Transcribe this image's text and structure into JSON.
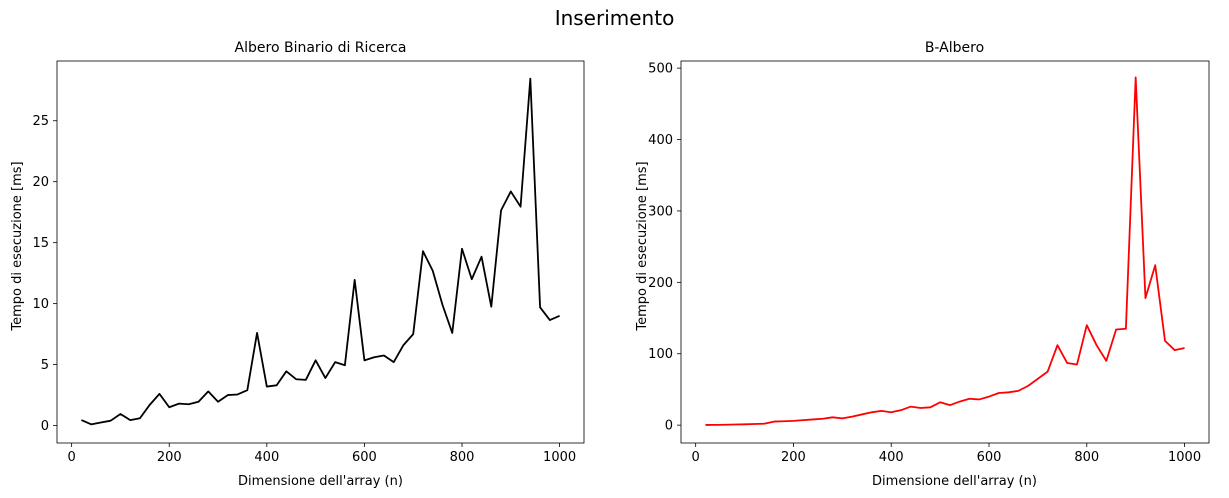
{
  "figure": {
    "suptitle": "Inserimento"
  },
  "chart_data": [
    {
      "type": "line",
      "title": "Albero Binario di Ricerca",
      "xlabel": "Dimensione dell'array (n)",
      "ylabel": "Tempo di esecuzione [ms]",
      "xlim": [
        -30,
        1050
      ],
      "ylim": [
        -1.43,
        29.9
      ],
      "xticks": [
        0,
        200,
        400,
        600,
        800,
        1000
      ],
      "yticks": [
        0,
        5,
        10,
        15,
        20,
        25
      ],
      "color": "#000000",
      "x": [
        20,
        40,
        60,
        80,
        100,
        120,
        140,
        160,
        180,
        200,
        220,
        240,
        260,
        280,
        300,
        320,
        340,
        360,
        380,
        400,
        420,
        440,
        460,
        480,
        500,
        520,
        540,
        560,
        580,
        600,
        620,
        640,
        660,
        680,
        700,
        720,
        740,
        760,
        780,
        800,
        820,
        840,
        860,
        880,
        900,
        920,
        940,
        960,
        980,
        1000
      ],
      "y": [
        0.45,
        0.1,
        0.25,
        0.4,
        0.95,
        0.45,
        0.6,
        1.7,
        2.6,
        1.5,
        1.8,
        1.75,
        1.95,
        2.8,
        1.95,
        2.5,
        2.55,
        2.9,
        7.6,
        3.2,
        3.3,
        4.45,
        3.8,
        3.75,
        5.35,
        3.9,
        5.2,
        4.95,
        11.95,
        5.35,
        5.6,
        5.75,
        5.2,
        6.6,
        7.5,
        14.3,
        12.7,
        9.9,
        7.6,
        14.5,
        12.0,
        13.85,
        9.75,
        17.65,
        19.2,
        17.95,
        28.45,
        9.7,
        8.65,
        9.0
      ]
    },
    {
      "type": "line",
      "title": "B-Albero",
      "xlabel": "Dimensione dell'array (n)",
      "ylabel": "Tempo di esecuzione [ms]",
      "xlim": [
        -30,
        1050
      ],
      "ylim": [
        -25,
        510
      ],
      "xticks": [
        0,
        200,
        400,
        600,
        800,
        1000
      ],
      "yticks": [
        0,
        100,
        200,
        300,
        400,
        500
      ],
      "color": "#ff0000",
      "x": [
        20,
        40,
        60,
        80,
        100,
        120,
        140,
        160,
        180,
        200,
        220,
        240,
        260,
        280,
        300,
        320,
        340,
        360,
        380,
        400,
        420,
        440,
        460,
        480,
        500,
        520,
        540,
        560,
        580,
        600,
        620,
        640,
        660,
        680,
        700,
        720,
        740,
        760,
        780,
        800,
        820,
        840,
        860,
        880,
        900,
        920,
        940,
        960,
        980,
        1000
      ],
      "y": [
        0.3,
        0.4,
        0.6,
        0.9,
        1.2,
        1.6,
        2,
        5,
        5.5,
        6,
        7,
        8,
        9,
        11,
        9.5,
        12,
        15,
        18,
        20,
        18,
        21,
        26,
        24,
        25,
        32,
        28,
        33,
        37,
        36,
        40,
        45,
        46,
        48,
        55,
        65,
        75,
        112,
        87,
        85,
        140,
        112,
        90,
        134,
        135,
        487,
        178,
        224,
        118,
        105,
        108
      ]
    }
  ]
}
